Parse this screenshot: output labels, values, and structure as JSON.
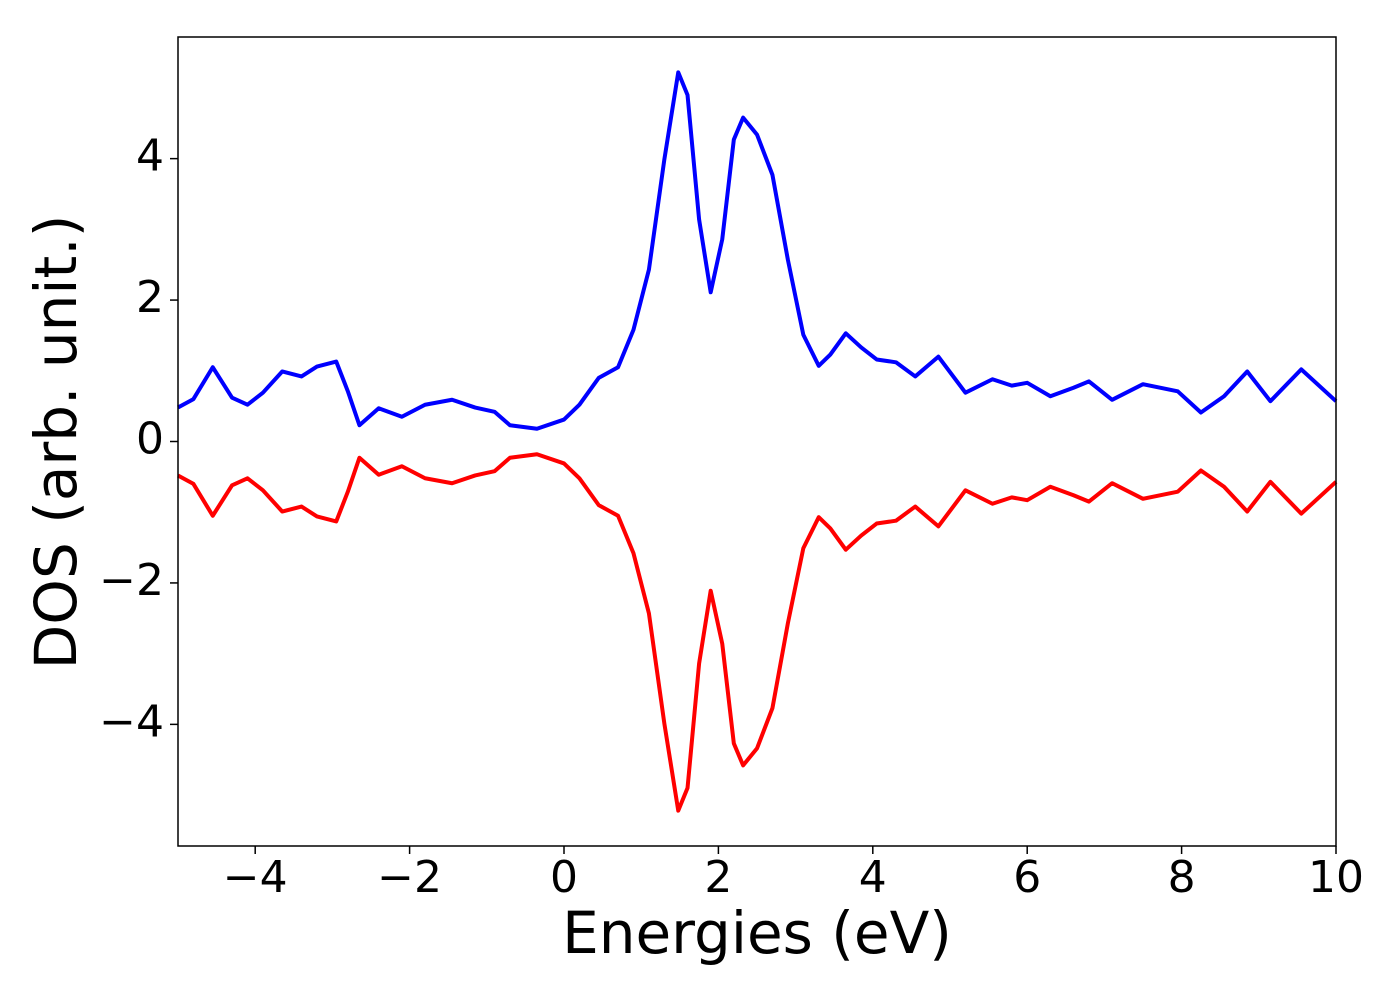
{
  "chart_data": {
    "type": "line",
    "xlabel": "Energies (eV)",
    "ylabel": "DOS (arb. unit.)",
    "x": [
      -5,
      -4.8,
      -4.55,
      -4.3,
      -4.1,
      -3.9,
      -3.65,
      -3.4,
      -3.2,
      -2.95,
      -2.8,
      -2.65,
      -2.4,
      -2.1,
      -1.8,
      -1.45,
      -1.15,
      -0.9,
      -0.7,
      -0.35,
      0,
      0.2,
      0.45,
      0.7,
      0.9,
      1.1,
      1.3,
      1.48,
      1.6,
      1.75,
      1.9,
      2.05,
      2.2,
      2.32,
      2.5,
      2.7,
      2.9,
      3.1,
      3.3,
      3.45,
      3.65,
      3.85,
      4.05,
      4.3,
      4.55,
      4.85,
      5.2,
      5.55,
      5.8,
      6.0,
      6.3,
      6.6,
      6.8,
      7.1,
      7.5,
      7.95,
      8.25,
      8.55,
      8.85,
      9.15,
      9.55,
      10
    ],
    "series": [
      {
        "color": "#0000ff",
        "values": [
          0.48,
          0.6,
          1.05,
          0.62,
          0.52,
          0.69,
          0.99,
          0.92,
          1.06,
          1.13,
          0.71,
          0.23,
          0.47,
          0.35,
          0.52,
          0.59,
          0.48,
          0.42,
          0.23,
          0.18,
          0.31,
          0.52,
          0.9,
          1.05,
          1.58,
          2.43,
          3.99,
          5.22,
          4.9,
          3.14,
          2.11,
          2.86,
          4.27,
          4.58,
          4.34,
          3.77,
          2.57,
          1.51,
          1.07,
          1.23,
          1.53,
          1.33,
          1.16,
          1.12,
          0.92,
          1.2,
          0.69,
          0.88,
          0.79,
          0.83,
          0.64,
          0.76,
          0.85,
          0.59,
          0.81,
          0.71,
          0.41,
          0.64,
          0.99,
          0.57,
          1.02,
          0.57
        ]
      },
      {
        "color": "#ff0000",
        "values": [
          -0.48,
          -0.6,
          -1.05,
          -0.62,
          -0.52,
          -0.69,
          -0.99,
          -0.92,
          -1.06,
          -1.13,
          -0.71,
          -0.23,
          -0.47,
          -0.35,
          -0.52,
          -0.59,
          -0.48,
          -0.42,
          -0.23,
          -0.18,
          -0.31,
          -0.52,
          -0.9,
          -1.05,
          -1.58,
          -2.43,
          -3.99,
          -5.22,
          -4.9,
          -3.14,
          -2.11,
          -2.86,
          -4.27,
          -4.58,
          -4.34,
          -3.77,
          -2.57,
          -1.51,
          -1.07,
          -1.23,
          -1.53,
          -1.33,
          -1.16,
          -1.12,
          -0.92,
          -1.2,
          -0.69,
          -0.88,
          -0.79,
          -0.83,
          -0.64,
          -0.76,
          -0.85,
          -0.59,
          -0.81,
          -0.71,
          -0.41,
          -0.64,
          -0.99,
          -0.57,
          -1.02,
          -0.57
        ]
      }
    ],
    "xlim": [
      -5,
      10
    ],
    "xticks": [
      {
        "value": -4,
        "label": "−4"
      },
      {
        "value": -2,
        "label": "−2"
      },
      0,
      2,
      4,
      6,
      8,
      10
    ],
    "ylim": [
      -5.72,
      5.72
    ],
    "yticks": [
      {
        "value": -4,
        "label": "−4"
      },
      {
        "value": -2,
        "label": "−2"
      },
      0,
      2,
      4
    ]
  }
}
